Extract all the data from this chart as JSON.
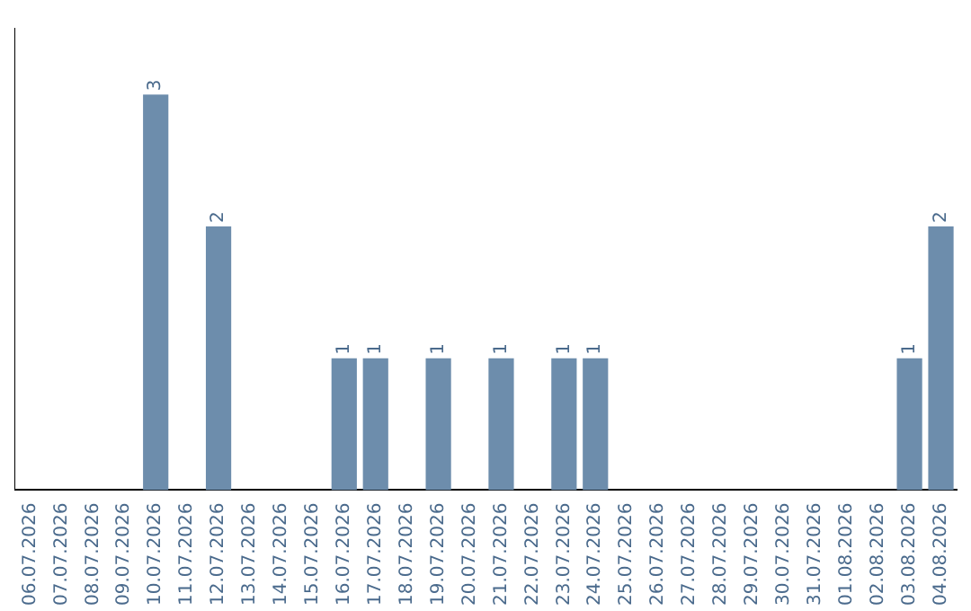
{
  "chart_data": {
    "type": "bar",
    "categories": [
      "06.07.2026",
      "07.07.2026",
      "08.07.2026",
      "09.07.2026",
      "10.07.2026",
      "11.07.2026",
      "12.07.2026",
      "13.07.2026",
      "14.07.2026",
      "15.07.2026",
      "16.07.2026",
      "17.07.2026",
      "18.07.2026",
      "19.07.2026",
      "20.07.2026",
      "21.07.2026",
      "22.07.2026",
      "23.07.2026",
      "24.07.2026",
      "25.07.2026",
      "26.07.2026",
      "27.07.2026",
      "28.07.2026",
      "29.07.2026",
      "30.07.2026",
      "31.07.2026",
      "01.08.2026",
      "02.08.2026",
      "03.08.2026",
      "04.08.2026"
    ],
    "values": [
      0,
      0,
      0,
      0,
      3,
      0,
      2,
      0,
      0,
      0,
      1,
      1,
      0,
      1,
      0,
      1,
      0,
      1,
      1,
      0,
      0,
      0,
      0,
      0,
      0,
      0,
      0,
      0,
      1,
      2
    ],
    "value_labels": [
      null,
      null,
      null,
      null,
      "3",
      null,
      "2",
      null,
      null,
      null,
      "1",
      "1",
      null,
      "1",
      null,
      "1",
      null,
      "1",
      "1",
      null,
      null,
      null,
      null,
      null,
      null,
      null,
      null,
      null,
      "1",
      "2"
    ],
    "color": "#6d8dac",
    "grid": false,
    "legend": false,
    "tick_labels": "x"
  }
}
